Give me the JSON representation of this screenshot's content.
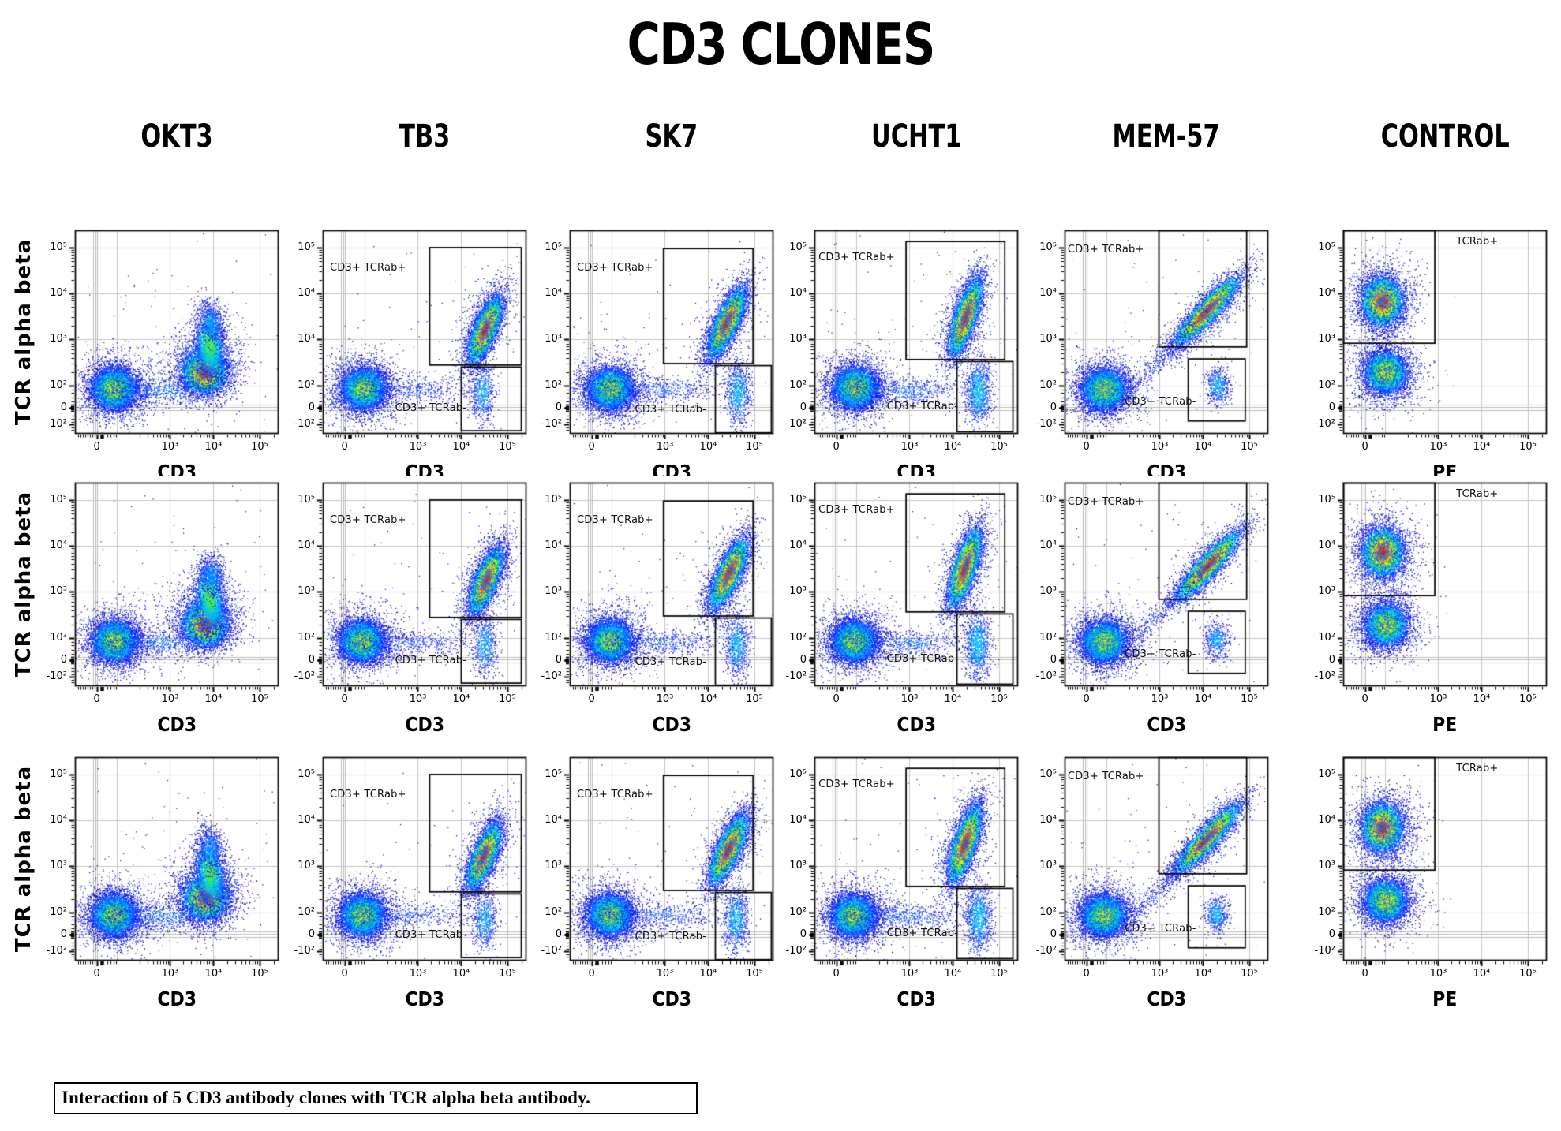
{
  "title": "CD3 CLONES",
  "caption": "Interaction of 5 CD3 antibody clones with TCR alpha beta antibody.",
  "row_axis_label": "TCR alpha beta",
  "gate_label_positive": "CD3+ TCRab+",
  "gate_label_negative": "CD3+ TCRab-",
  "gate_label_control": "TCRab+",
  "chart_data": {
    "type": "scatter",
    "subtype": "flow-cytometry-pseudocolor-density",
    "rows": 3,
    "x_axis_scale": "biexponential",
    "y_axis_scale": "biexponential",
    "x_ticks": [
      {
        "label": "0",
        "f": 0.107
      },
      {
        "label": "10³",
        "f": 0.467
      },
      {
        "label": "10⁴",
        "f": 0.68
      },
      {
        "label": "10⁵",
        "f": 0.907
      }
    ],
    "y_ticks": [
      {
        "label": "10⁵",
        "f": 0.085
      },
      {
        "label": "10⁴",
        "f": 0.31
      },
      {
        "label": "10³",
        "f": 0.535
      },
      {
        "label": "10²",
        "f": 0.765
      },
      {
        "label": "0",
        "f": 0.872
      },
      {
        "label": "-10²",
        "f": 0.955
      }
    ],
    "grid_vertical": [
      0.205,
      0.467,
      0.68,
      0.907
    ],
    "grid_vertical_zero_cluster": [
      0.088,
      0.099,
      0.11
    ],
    "grid_horizontal": [
      0.085,
      0.31,
      0.535,
      0.765
    ],
    "grid_horizontal_zero_cluster": [
      0.856,
      0.869,
      0.882
    ],
    "colormap": [
      [
        0.0,
        [
          0,
          0,
          140
        ]
      ],
      [
        0.13,
        [
          10,
          10,
          255
        ]
      ],
      [
        0.36,
        [
          0,
          200,
          255
        ]
      ],
      [
        0.5,
        [
          40,
          230,
          120
        ]
      ],
      [
        0.64,
        [
          180,
          255,
          0
        ]
      ],
      [
        0.78,
        [
          255,
          220,
          0
        ]
      ],
      [
        0.9,
        [
          255,
          120,
          0
        ]
      ],
      [
        1.0,
        [
          225,
          10,
          10
        ]
      ]
    ],
    "columns": [
      {
        "name": "OKT3",
        "x_axis_label": "CD3",
        "gates": [],
        "gate_labels": [],
        "populations": [
          {
            "cx": 0.195,
            "cy": 0.775,
            "sx": 0.052,
            "sy": 0.048,
            "a": 0,
            "n": 6200,
            "peak": 0.7
          },
          {
            "cx": 0.195,
            "cy": 0.775,
            "sx": 0.095,
            "sy": 0.085,
            "a": 0,
            "n": 1700,
            "peak": 0.27
          },
          {
            "cx": 0.5,
            "cy": 0.55,
            "sx": 0.42,
            "sy": 0.3,
            "a": 0,
            "n": 110,
            "peak": 0.12
          },
          {
            "cx": 0.635,
            "cy": 0.695,
            "sx": 0.05,
            "sy": 0.05,
            "a": 0,
            "n": 6000,
            "peak": 1.0
          },
          {
            "cx": 0.64,
            "cy": 0.665,
            "sx": 0.09,
            "sy": 0.09,
            "a": 0,
            "n": 2000,
            "peak": 0.3
          },
          {
            "cx": 0.655,
            "cy": 0.565,
            "sx": 0.035,
            "sy": 0.08,
            "a": -8,
            "n": 2200,
            "peak": 0.55
          },
          {
            "cx": 0.668,
            "cy": 0.45,
            "sx": 0.033,
            "sy": 0.055,
            "a": -8,
            "n": 700,
            "peak": 0.3
          },
          {
            "cx": 0.43,
            "cy": 0.78,
            "sx": 0.13,
            "sy": 0.035,
            "a": 0,
            "n": 650,
            "peak": 0.25
          }
        ]
      },
      {
        "name": "TB3",
        "x_axis_label": "CD3",
        "gates": [
          {
            "x1": 0.525,
            "y1": 0.085,
            "x2": 0.975,
            "y2": 0.662
          },
          {
            "x1": 0.68,
            "y1": 0.672,
            "x2": 0.975,
            "y2": 0.985
          }
        ],
        "gate_labels": [
          {
            "text": "CD3+ TCRab+",
            "fx": 0.035,
            "fy": 0.185
          },
          {
            "text": "CD3+ TCRab-",
            "fx": 0.355,
            "fy": 0.875
          }
        ],
        "populations": [
          {
            "cx": 0.195,
            "cy": 0.775,
            "sx": 0.052,
            "sy": 0.048,
            "a": 0,
            "n": 6200,
            "peak": 0.7
          },
          {
            "cx": 0.195,
            "cy": 0.775,
            "sx": 0.095,
            "sy": 0.085,
            "a": 0,
            "n": 1700,
            "peak": 0.27
          },
          {
            "cx": 0.5,
            "cy": 0.55,
            "sx": 0.42,
            "sy": 0.3,
            "a": 0,
            "n": 110,
            "peak": 0.12
          },
          {
            "cx": 0.795,
            "cy": 0.48,
            "sx": 0.082,
            "sy": 0.026,
            "a": -68,
            "n": 6200,
            "peak": 1.0
          },
          {
            "cx": 0.795,
            "cy": 0.48,
            "sx": 0.12,
            "sy": 0.05,
            "a": -68,
            "n": 1300,
            "peak": 0.28
          },
          {
            "cx": 0.79,
            "cy": 0.8,
            "sx": 0.031,
            "sy": 0.078,
            "a": 0,
            "n": 700,
            "peak": 0.32
          },
          {
            "cx": 0.45,
            "cy": 0.785,
            "sx": 0.14,
            "sy": 0.032,
            "a": 0,
            "n": 450,
            "peak": 0.2
          }
        ]
      },
      {
        "name": "SK7",
        "x_axis_label": "CD3",
        "gates": [
          {
            "x1": 0.46,
            "y1": 0.09,
            "x2": 0.9,
            "y2": 0.655
          },
          {
            "x1": 0.715,
            "y1": 0.665,
            "x2": 0.99,
            "y2": 0.995
          }
        ],
        "gate_labels": [
          {
            "text": "CD3+ TCRab+",
            "fx": 0.035,
            "fy": 0.185
          },
          {
            "text": "CD3+ TCRab-",
            "fx": 0.32,
            "fy": 0.885
          }
        ],
        "populations": [
          {
            "cx": 0.195,
            "cy": 0.775,
            "sx": 0.052,
            "sy": 0.048,
            "a": 0,
            "n": 6200,
            "peak": 0.7
          },
          {
            "cx": 0.195,
            "cy": 0.775,
            "sx": 0.095,
            "sy": 0.085,
            "a": 0,
            "n": 1700,
            "peak": 0.27
          },
          {
            "cx": 0.5,
            "cy": 0.55,
            "sx": 0.42,
            "sy": 0.3,
            "a": 0,
            "n": 110,
            "peak": 0.12
          },
          {
            "cx": 0.775,
            "cy": 0.45,
            "sx": 0.088,
            "sy": 0.027,
            "a": -65,
            "n": 6400,
            "peak": 1.0
          },
          {
            "cx": 0.775,
            "cy": 0.45,
            "sx": 0.125,
            "sy": 0.05,
            "a": -65,
            "n": 1300,
            "peak": 0.28
          },
          {
            "cx": 0.82,
            "cy": 0.795,
            "sx": 0.031,
            "sy": 0.082,
            "a": 0,
            "n": 900,
            "peak": 0.34
          },
          {
            "cx": 0.46,
            "cy": 0.785,
            "sx": 0.14,
            "sy": 0.032,
            "a": 0,
            "n": 520,
            "peak": 0.22
          }
        ]
      },
      {
        "name": "UCHT1",
        "x_axis_label": "CD3",
        "gates": [
          {
            "x1": 0.45,
            "y1": 0.055,
            "x2": 0.935,
            "y2": 0.635
          },
          {
            "x1": 0.7,
            "y1": 0.645,
            "x2": 0.975,
            "y2": 0.99
          }
        ],
        "gate_labels": [
          {
            "text": "CD3+ TCRab+",
            "fx": 0.02,
            "fy": 0.135
          },
          {
            "text": "CD3+ TCRab-",
            "fx": 0.355,
            "fy": 0.87
          }
        ],
        "populations": [
          {
            "cx": 0.195,
            "cy": 0.775,
            "sx": 0.052,
            "sy": 0.048,
            "a": 0,
            "n": 6200,
            "peak": 0.7
          },
          {
            "cx": 0.195,
            "cy": 0.775,
            "sx": 0.095,
            "sy": 0.085,
            "a": 0,
            "n": 1700,
            "peak": 0.27
          },
          {
            "cx": 0.5,
            "cy": 0.55,
            "sx": 0.42,
            "sy": 0.3,
            "a": 0,
            "n": 110,
            "peak": 0.12
          },
          {
            "cx": 0.735,
            "cy": 0.42,
            "sx": 0.094,
            "sy": 0.026,
            "a": -72,
            "n": 6400,
            "peak": 1.0
          },
          {
            "cx": 0.735,
            "cy": 0.42,
            "sx": 0.13,
            "sy": 0.05,
            "a": -72,
            "n": 1300,
            "peak": 0.28
          },
          {
            "cx": 0.8,
            "cy": 0.79,
            "sx": 0.033,
            "sy": 0.085,
            "a": 0,
            "n": 1150,
            "peak": 0.36
          },
          {
            "cx": 0.46,
            "cy": 0.785,
            "sx": 0.14,
            "sy": 0.032,
            "a": 0,
            "n": 600,
            "peak": 0.24
          }
        ]
      },
      {
        "name": "MEM-57",
        "x_axis_label": "CD3",
        "gates": [
          {
            "x1": 0.463,
            "y1": 0.002,
            "x2": 0.894,
            "y2": 0.573
          },
          {
            "x1": 0.607,
            "y1": 0.632,
            "x2": 0.887,
            "y2": 0.937
          }
        ],
        "gate_labels": [
          {
            "text": "CD3+ TCRab+",
            "fx": 0.015,
            "fy": 0.095
          },
          {
            "text": "CD3+ TCRab-",
            "fx": 0.295,
            "fy": 0.845
          }
        ],
        "populations": [
          {
            "cx": 0.195,
            "cy": 0.775,
            "sx": 0.052,
            "sy": 0.048,
            "a": 0,
            "n": 6200,
            "peak": 0.7
          },
          {
            "cx": 0.195,
            "cy": 0.775,
            "sx": 0.095,
            "sy": 0.085,
            "a": 0,
            "n": 1700,
            "peak": 0.27
          },
          {
            "cx": 0.5,
            "cy": 0.55,
            "sx": 0.42,
            "sy": 0.3,
            "a": 0,
            "n": 110,
            "peak": 0.12
          },
          {
            "cx": 0.7,
            "cy": 0.4,
            "sx": 0.108,
            "sy": 0.024,
            "a": -47,
            "n": 6000,
            "peak": 1.0
          },
          {
            "cx": 0.7,
            "cy": 0.4,
            "sx": 0.14,
            "sy": 0.045,
            "a": -47,
            "n": 1200,
            "peak": 0.28
          },
          {
            "cx": 0.745,
            "cy": 0.765,
            "sx": 0.03,
            "sy": 0.047,
            "a": 0,
            "n": 580,
            "peak": 0.33
          },
          {
            "cx": 0.47,
            "cy": 0.645,
            "sx": 0.16,
            "sy": 0.022,
            "a": -47,
            "n": 320,
            "peak": 0.17
          }
        ]
      },
      {
        "name": "CONTROL",
        "x_axis_label": "PE",
        "gates": [
          {
            "x1": 0.002,
            "y1": 0.002,
            "x2": 0.45,
            "y2": 0.555
          }
        ],
        "gate_labels": [
          {
            "text": "TCRab+",
            "fx": 0.555,
            "fy": 0.06
          }
        ],
        "populations": [
          {
            "cx": 0.195,
            "cy": 0.345,
            "sx": 0.046,
            "sy": 0.055,
            "a": 0,
            "n": 6300,
            "peak": 1.0
          },
          {
            "cx": 0.195,
            "cy": 0.345,
            "sx": 0.085,
            "sy": 0.095,
            "a": 0,
            "n": 1600,
            "peak": 0.28
          },
          {
            "cx": 0.205,
            "cy": 0.7,
            "sx": 0.05,
            "sy": 0.05,
            "a": 0,
            "n": 5200,
            "peak": 0.72
          },
          {
            "cx": 0.205,
            "cy": 0.7,
            "sx": 0.09,
            "sy": 0.085,
            "a": 0,
            "n": 1400,
            "peak": 0.26
          },
          {
            "cx": 0.22,
            "cy": 0.52,
            "sx": 0.1,
            "sy": 0.25,
            "a": 0,
            "n": 150,
            "peak": 0.12
          }
        ]
      }
    ]
  }
}
